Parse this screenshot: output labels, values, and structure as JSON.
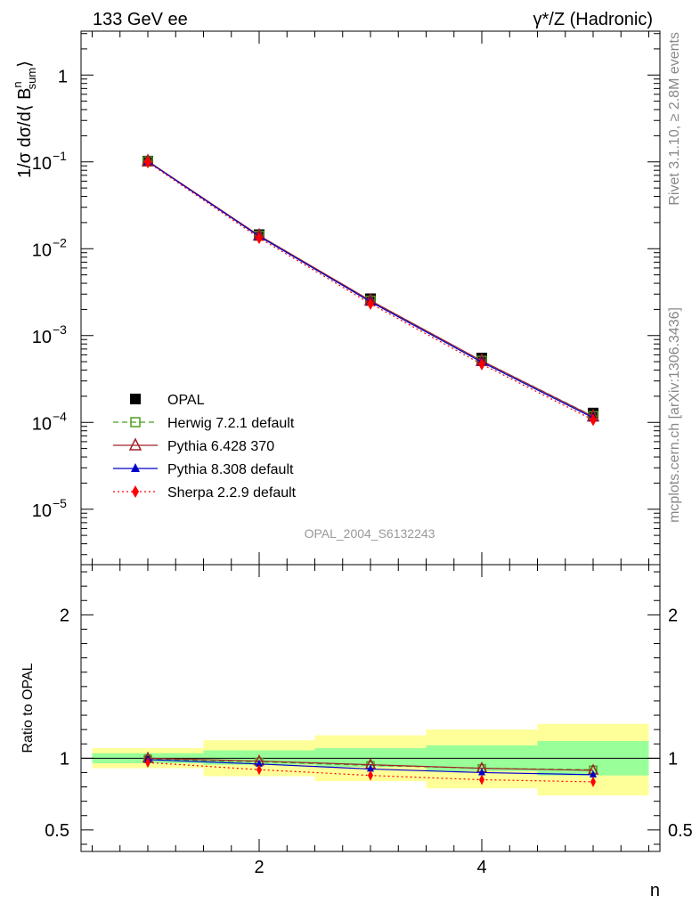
{
  "header": {
    "left": "133 GeV ee",
    "right": "γ*/Z (Hadronic)"
  },
  "side": {
    "rivet": "Rivet 3.1.10, ≥ 2.8M events",
    "mcplots": "mcplots.cern.ch [arXiv:1306.3436]"
  },
  "watermark": "OPAL_2004_S6132243",
  "colors": {
    "opal": "#000000",
    "herwig": "#4b9e1f",
    "pythia6": "#a0232a",
    "pythia8": "#0000cc",
    "sherpa": "#ff0000",
    "band_inner": "#99ff99",
    "band_outer": "#ffff99"
  },
  "chart_data": [
    {
      "type": "line",
      "scale_y": "log",
      "ylabel_parts": [
        "1/σ dσ/d⟨ B",
        "n",
        "sum",
        "⟩"
      ],
      "xlim": [
        0.4,
        5.6
      ],
      "ylim": [
        2.3e-06,
        3.2
      ],
      "y_ticks": [
        {
          "v": 1,
          "label": "1"
        },
        {
          "v": 0.1,
          "label": "10",
          "exp": "−1"
        },
        {
          "v": 0.01,
          "label": "10",
          "exp": "−2"
        },
        {
          "v": 0.001,
          "label": "10",
          "exp": "−3"
        },
        {
          "v": 0.0001,
          "label": "10",
          "exp": "−4"
        },
        {
          "v": 1e-05,
          "label": "10",
          "exp": "−5"
        }
      ],
      "x": [
        1,
        2,
        3,
        4,
        5
      ],
      "series": [
        {
          "name": "OPAL",
          "key": "opal",
          "marker": "square-filled",
          "style": "none",
          "values": [
            0.102,
            0.0145,
            0.00265,
            0.00055,
            0.000128
          ]
        },
        {
          "name": "Herwig 7.2.1 default",
          "key": "herwig",
          "marker": "square-open",
          "style": "dashed",
          "values": [
            0.1015,
            0.0141,
            0.00252,
            0.000512,
            0.000118
          ]
        },
        {
          "name": "Pythia 6.428 370",
          "key": "pythia6",
          "marker": "triangle-open",
          "style": "solid",
          "values": [
            0.102,
            0.0142,
            0.00253,
            0.000512,
            0.000117
          ]
        },
        {
          "name": "Pythia 8.308 default",
          "key": "pythia8",
          "marker": "triangle-filled",
          "style": "solid",
          "values": [
            0.101,
            0.0139,
            0.00245,
            0.000495,
            0.000113
          ]
        },
        {
          "name": "Sherpa 2.2.9 default",
          "key": "sherpa",
          "marker": "diamond-filled",
          "style": "dotted",
          "values": [
            0.099,
            0.0133,
            0.00233,
            0.000468,
            0.000107
          ]
        }
      ]
    },
    {
      "type": "line",
      "ylabel": "Ratio to OPAL",
      "xlabel": "n",
      "xlim": [
        0.4,
        5.6
      ],
      "ylim": [
        0.35,
        2.35
      ],
      "y_ticks": [
        {
          "v": 0.5,
          "label": "0.5"
        },
        {
          "v": 1,
          "label": "1"
        },
        {
          "v": 2,
          "label": "2"
        }
      ],
      "x_ticks": [
        {
          "v": 2,
          "label": "2"
        },
        {
          "v": 4,
          "label": "4"
        }
      ],
      "x": [
        1,
        2,
        3,
        4,
        5
      ],
      "bands": [
        {
          "x0": 0.5,
          "x1": 1.5,
          "inner": [
            0.965,
            1.035
          ],
          "outer": [
            0.93,
            1.07
          ]
        },
        {
          "x0": 1.5,
          "x1": 2.5,
          "inner": [
            0.955,
            1.055
          ],
          "outer": [
            0.875,
            1.125
          ]
        },
        {
          "x0": 2.5,
          "x1": 3.5,
          "inner": [
            0.94,
            1.07
          ],
          "outer": [
            0.84,
            1.16
          ]
        },
        {
          "x0": 3.5,
          "x1": 4.5,
          "inner": [
            0.91,
            1.09
          ],
          "outer": [
            0.79,
            1.2
          ]
        },
        {
          "x0": 4.5,
          "x1": 5.5,
          "inner": [
            0.88,
            1.12
          ],
          "outer": [
            0.74,
            1.24
          ]
        }
      ],
      "series": [
        {
          "name": "Herwig 7.2.1 default",
          "key": "herwig",
          "marker": "square-open",
          "style": "dashed",
          "values": [
            0.995,
            0.975,
            0.95,
            0.93,
            0.92
          ]
        },
        {
          "name": "Pythia 6.428 370",
          "key": "pythia6",
          "marker": "triangle-open",
          "style": "solid",
          "values": [
            1.0,
            0.98,
            0.955,
            0.93,
            0.915
          ]
        },
        {
          "name": "Pythia 8.308 default",
          "key": "pythia8",
          "marker": "triangle-filled",
          "style": "solid",
          "values": [
            0.99,
            0.96,
            0.925,
            0.9,
            0.885
          ]
        },
        {
          "name": "Sherpa 2.2.9 default",
          "key": "sherpa",
          "marker": "diamond-filled",
          "style": "dotted",
          "values": [
            0.97,
            0.92,
            0.88,
            0.85,
            0.835
          ]
        }
      ]
    }
  ]
}
